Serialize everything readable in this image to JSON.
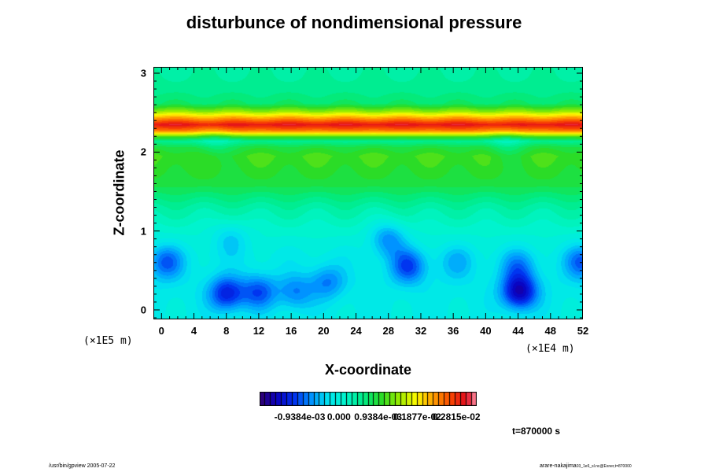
{
  "chart_data": {
    "type": "heatmap",
    "title": "disturbunce of nondimensional pressure",
    "xlabel": "X-coordinate",
    "ylabel": "Z-coordinate",
    "x_unit": "(×1E4 m)",
    "y_unit": "(×1E5 m)",
    "x_ticks": [
      0,
      4,
      8,
      12,
      16,
      20,
      24,
      28,
      32,
      36,
      40,
      44,
      48,
      52
    ],
    "y_ticks": [
      0,
      1,
      2,
      3
    ],
    "xlim": [
      -1,
      52
    ],
    "ylim": [
      -0.12,
      3.08
    ],
    "colorbar": {
      "tick_labels": [
        "-0.9384e-03",
        "0.000",
        "0.9384e-03",
        "0.1877e-02",
        "0.2815e-02"
      ],
      "tick_values": [
        -0.0009384,
        0.0,
        0.0009384,
        0.001877,
        0.002815
      ],
      "range": [
        -0.0019,
        0.0033
      ]
    },
    "layer_profile": [
      {
        "z": 3.08,
        "value": 0.0004
      },
      {
        "z": 2.8,
        "value": 0.0005
      },
      {
        "z": 2.62,
        "value": 0.0007
      },
      {
        "z": 2.52,
        "value": 0.0014
      },
      {
        "z": 2.43,
        "value": 0.0023
      },
      {
        "z": 2.35,
        "value": 0.003
      },
      {
        "z": 2.27,
        "value": 0.0024
      },
      {
        "z": 2.2,
        "value": 0.0012
      },
      {
        "z": 2.14,
        "value": 0.0005
      },
      {
        "z": 2.06,
        "value": 0.0009
      },
      {
        "z": 1.95,
        "value": 0.0011
      },
      {
        "z": 1.6,
        "value": 0.0009
      },
      {
        "z": 1.3,
        "value": 0.0004
      },
      {
        "z": 1.0,
        "value": 0.0001
      },
      {
        "z": 0.7,
        "value": -0.0001
      },
      {
        "z": 0.35,
        "value": -0.00015
      },
      {
        "z": -0.12,
        "value": -0.0001
      }
    ],
    "blobs": [
      {
        "x": 8,
        "z": 0.2,
        "value": -0.0011
      },
      {
        "x": 12,
        "z": 0.22,
        "value": -0.0008
      },
      {
        "x": 16.5,
        "z": 0.22,
        "value": -0.0006
      },
      {
        "x": 20.5,
        "z": 0.35,
        "value": -0.0006
      },
      {
        "x": 0.5,
        "z": 0.6,
        "value": -0.0008
      },
      {
        "x": 30.5,
        "z": 0.55,
        "value": -0.0009
      },
      {
        "x": 44.2,
        "z": 0.22,
        "value": -0.0014
      },
      {
        "x": 44,
        "z": 0.55,
        "value": -0.0006
      },
      {
        "x": 52,
        "z": 0.6,
        "value": -0.0008
      },
      {
        "x": 28,
        "z": 0.9,
        "value": -0.0007
      },
      {
        "x": 8.5,
        "z": 0.9,
        "value": -0.0004
      },
      {
        "x": 36.5,
        "z": 0.6,
        "value": -0.0004
      },
      {
        "x": 6.5,
        "z": 2.12,
        "value": -0.0003
      },
      {
        "x": 42.5,
        "z": 2.12,
        "value": -0.0003
      }
    ]
  },
  "time_label": "t=870000 s",
  "footer_left": "/usr/bin/gpview 2005-07-22",
  "footer_right_main": "arare-nakajima",
  "footer_right_sub": "03_1e6_sl.nc@Exner,t=870000"
}
